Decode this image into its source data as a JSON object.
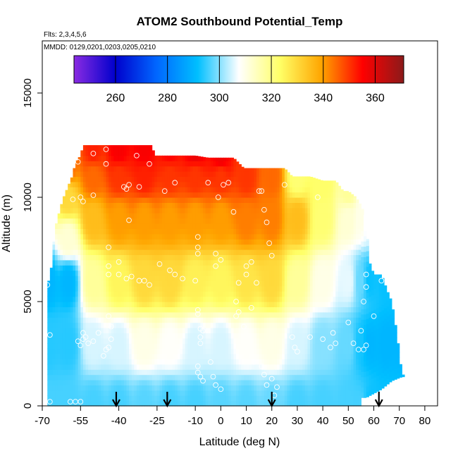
{
  "chart_data": {
    "type": "heatmap",
    "title": "ATOM2 Southbound Potential_Temp",
    "subtitle_flights": "Flts: 2,3,4,5,6",
    "subtitle_dates": "MMDD: 0129,0201,0203,0205,0210",
    "xlabel": "Latitude (deg N)",
    "ylabel": "Altitude (m)",
    "xlim": [
      -70,
      85
    ],
    "ylim": [
      0,
      17500
    ],
    "x_ticks": [
      -70,
      -55,
      -40,
      -25,
      -10,
      0,
      10,
      20,
      30,
      40,
      50,
      60,
      70,
      80
    ],
    "y_ticks": [
      0,
      5000,
      10000,
      15000
    ],
    "colorbar": {
      "min": 244,
      "max": 371,
      "ticks": [
        260,
        280,
        300,
        320,
        340,
        360
      ],
      "colors": [
        "#8a2be2",
        "#0000cc",
        "#0066ff",
        "#00bfff",
        "#ffffff",
        "#ffff66",
        "#ffa500",
        "#ff0000",
        "#8b1a1a"
      ]
    },
    "column_tops": [
      [
        -67,
        6000
      ],
      [
        -65,
        8500
      ],
      [
        -64,
        9000
      ],
      [
        -62,
        9900
      ],
      [
        -60,
        10500
      ],
      [
        -58,
        11100
      ],
      [
        -57,
        11700
      ],
      [
        -55,
        12000
      ],
      [
        -54,
        12500
      ],
      [
        -50,
        12500
      ],
      [
        -45,
        12500
      ],
      [
        -40,
        12500
      ],
      [
        -35,
        12500
      ],
      [
        -30,
        12500
      ],
      [
        -27,
        12500
      ],
      [
        -26,
        12000
      ],
      [
        -20,
        12000
      ],
      [
        -15,
        12000
      ],
      [
        -10,
        12000
      ],
      [
        -5,
        11900
      ],
      [
        0,
        11900
      ],
      [
        5,
        11900
      ],
      [
        9,
        11400
      ],
      [
        15,
        11400
      ],
      [
        20,
        11400
      ],
      [
        25,
        11400
      ],
      [
        28,
        11000
      ],
      [
        35,
        11000
      ],
      [
        40,
        10800
      ],
      [
        45,
        10800
      ],
      [
        48,
        10300
      ],
      [
        50,
        10300
      ],
      [
        53,
        10000
      ],
      [
        55,
        9600
      ],
      [
        57,
        9000
      ],
      [
        58,
        7000
      ],
      [
        60,
        6300
      ],
      [
        63,
        6300
      ],
      [
        65,
        5600
      ],
      [
        67,
        5000
      ],
      [
        69,
        3500
      ],
      [
        70,
        2500
      ],
      [
        71,
        1500
      ]
    ],
    "column_bottoms": [
      [
        55,
        400
      ],
      [
        57,
        400
      ],
      [
        60,
        600
      ],
      [
        63,
        800
      ],
      [
        65,
        1000
      ],
      [
        67,
        1200
      ],
      [
        69,
        1300
      ],
      [
        71,
        1400
      ]
    ],
    "cross_section_anchors": [
      [
        -68,
        0,
        296
      ],
      [
        -68,
        3000,
        294
      ],
      [
        -68,
        6000,
        290
      ],
      [
        -60,
        0,
        296
      ],
      [
        -60,
        3000,
        294
      ],
      [
        -60,
        6000,
        290
      ],
      [
        -60,
        8000,
        312
      ],
      [
        -60,
        10000,
        330
      ],
      [
        -60,
        11500,
        345
      ],
      [
        -50,
        0,
        296
      ],
      [
        -50,
        3000,
        305
      ],
      [
        -50,
        6000,
        318
      ],
      [
        -50,
        9000,
        335
      ],
      [
        -50,
        11000,
        345
      ],
      [
        -50,
        12300,
        352
      ],
      [
        -40,
        0,
        296
      ],
      [
        -40,
        3000,
        305
      ],
      [
        -40,
        6000,
        325
      ],
      [
        -40,
        9000,
        340
      ],
      [
        -40,
        11000,
        350
      ],
      [
        -40,
        12300,
        356
      ],
      [
        -30,
        0,
        297
      ],
      [
        -30,
        3000,
        310
      ],
      [
        -30,
        6000,
        330
      ],
      [
        -30,
        9000,
        340
      ],
      [
        -30,
        11000,
        352
      ],
      [
        -30,
        12300,
        356
      ],
      [
        -20,
        0,
        296
      ],
      [
        -20,
        3000,
        308
      ],
      [
        -20,
        6000,
        330
      ],
      [
        -20,
        9000,
        340
      ],
      [
        -20,
        11000,
        350
      ],
      [
        -20,
        12300,
        355
      ],
      [
        -10,
        0,
        296
      ],
      [
        -10,
        3000,
        305
      ],
      [
        -10,
        6000,
        326
      ],
      [
        -10,
        9000,
        340
      ],
      [
        -10,
        11000,
        350
      ],
      [
        -10,
        12300,
        358
      ],
      [
        0,
        0,
        297
      ],
      [
        0,
        3000,
        305
      ],
      [
        0,
        6000,
        325
      ],
      [
        0,
        9000,
        340
      ],
      [
        0,
        11000,
        350
      ],
      [
        0,
        12000,
        357
      ],
      [
        10,
        0,
        297
      ],
      [
        10,
        3000,
        308
      ],
      [
        10,
        6000,
        328
      ],
      [
        10,
        9000,
        343
      ],
      [
        10,
        11000,
        350
      ],
      [
        20,
        0,
        298
      ],
      [
        20,
        3000,
        310
      ],
      [
        20,
        6000,
        330
      ],
      [
        20,
        9000,
        343
      ],
      [
        20,
        11000,
        345
      ],
      [
        30,
        0,
        296
      ],
      [
        30,
        3000,
        305
      ],
      [
        30,
        6000,
        318
      ],
      [
        30,
        9000,
        335
      ],
      [
        30,
        11000,
        322
      ],
      [
        40,
        0,
        296
      ],
      [
        40,
        3000,
        300
      ],
      [
        40,
        6000,
        310
      ],
      [
        40,
        9000,
        322
      ],
      [
        40,
        10700,
        323
      ],
      [
        50,
        0,
        296
      ],
      [
        50,
        3000,
        298
      ],
      [
        50,
        6000,
        306
      ],
      [
        50,
        9000,
        312
      ],
      [
        50,
        10300,
        318
      ],
      [
        55,
        0,
        296
      ],
      [
        55,
        3000,
        293
      ],
      [
        55,
        6000,
        298
      ],
      [
        55,
        9000,
        310
      ],
      [
        58,
        0,
        292
      ],
      [
        58,
        3000,
        290
      ],
      [
        58,
        6000,
        292
      ],
      [
        58,
        9000,
        305
      ],
      [
        65,
        0,
        292
      ],
      [
        65,
        3000,
        290
      ],
      [
        65,
        6000,
        292
      ],
      [
        71,
        0,
        292
      ],
      [
        71,
        3000,
        290
      ],
      [
        71,
        6000,
        292
      ]
    ],
    "observation_points": [
      [
        -67,
        200
      ],
      [
        -67,
        3400
      ],
      [
        -68,
        5800
      ],
      [
        -59,
        200
      ],
      [
        -57,
        200
      ],
      [
        -55,
        200
      ],
      [
        -54,
        3500
      ],
      [
        -56,
        3100
      ],
      [
        -55,
        2900
      ],
      [
        -54,
        3200
      ],
      [
        -53,
        3300
      ],
      [
        -52,
        3000
      ],
      [
        -50,
        3100
      ],
      [
        -48,
        3500
      ],
      [
        -44,
        4300
      ],
      [
        -43,
        3800
      ],
      [
        -43,
        3200
      ],
      [
        -44,
        2800
      ],
      [
        -45,
        2700
      ],
      [
        -46,
        2400
      ],
      [
        -44,
        6300
      ],
      [
        -44,
        6700
      ],
      [
        -44,
        7600
      ],
      [
        -40,
        6300
      ],
      [
        -40,
        6900
      ],
      [
        -37,
        6100
      ],
      [
        -35,
        6200
      ],
      [
        -32,
        6000
      ],
      [
        -30,
        6000
      ],
      [
        -28,
        5800
      ],
      [
        -24,
        6800
      ],
      [
        -20,
        6500
      ],
      [
        -18,
        6300
      ],
      [
        -15,
        6100
      ],
      [
        -10,
        6000
      ],
      [
        -9,
        4600
      ],
      [
        -9,
        4400
      ],
      [
        -8,
        3700
      ],
      [
        -7,
        3600
      ],
      [
        -8,
        3300
      ],
      [
        -8,
        3000
      ],
      [
        -9,
        1900
      ],
      [
        -9,
        1600
      ],
      [
        -8,
        1400
      ],
      [
        -7,
        1200
      ],
      [
        -4,
        2100
      ],
      [
        -3,
        1400
      ],
      [
        -2,
        1000
      ],
      [
        0,
        800
      ],
      [
        -2,
        6700
      ],
      [
        0,
        7000
      ],
      [
        -2,
        7300
      ],
      [
        -9,
        7300
      ],
      [
        -9,
        7600
      ],
      [
        -9,
        8100
      ],
      [
        -5,
        10700
      ],
      [
        -1,
        10000
      ],
      [
        1,
        10600
      ],
      [
        3,
        10700
      ],
      [
        5,
        9300
      ],
      [
        7,
        5900
      ],
      [
        6,
        5000
      ],
      [
        6,
        4300
      ],
      [
        7,
        4500
      ],
      [
        9,
        3800
      ],
      [
        10,
        6300
      ],
      [
        10,
        6700
      ],
      [
        12,
        6900
      ],
      [
        14,
        5900
      ],
      [
        12,
        4700
      ],
      [
        13,
        2100
      ],
      [
        16,
        1900
      ],
      [
        17,
        1500
      ],
      [
        18,
        1000
      ],
      [
        20,
        1300
      ],
      [
        21,
        500
      ],
      [
        22,
        900
      ],
      [
        15,
        10300
      ],
      [
        16,
        10300
      ],
      [
        17,
        9400
      ],
      [
        18,
        8800
      ],
      [
        19,
        7800
      ],
      [
        20,
        7200
      ],
      [
        25,
        10600
      ],
      [
        28,
        3300
      ],
      [
        29,
        2800
      ],
      [
        30,
        2600
      ],
      [
        35,
        3300
      ],
      [
        38,
        10000
      ],
      [
        40,
        3200
      ],
      [
        43,
        2800
      ],
      [
        44,
        3500
      ],
      [
        45,
        3000
      ],
      [
        50,
        4000
      ],
      [
        52,
        3000
      ],
      [
        54,
        2700
      ],
      [
        55,
        3600
      ],
      [
        56,
        2700
      ],
      [
        57,
        2900
      ],
      [
        56,
        5000
      ],
      [
        57,
        5700
      ],
      [
        57,
        6300
      ],
      [
        60,
        4300
      ],
      [
        63,
        6000
      ],
      [
        70,
        600
      ],
      [
        -38,
        10500
      ],
      [
        -36,
        10600
      ],
      [
        -33,
        12000
      ],
      [
        -28,
        11600
      ],
      [
        -18,
        10700
      ],
      [
        -22,
        10300
      ],
      [
        -45,
        11600
      ],
      [
        -45,
        12300
      ],
      [
        -32,
        10500
      ],
      [
        -50,
        10100
      ],
      [
        -50,
        12100
      ],
      [
        -54,
        9800
      ],
      [
        -55,
        10000
      ],
      [
        -58,
        9900
      ],
      [
        -56,
        11700
      ],
      [
        -36,
        8900
      ],
      [
        -37,
        10400
      ]
    ],
    "flight_arrows_lat": [
      -41,
      -21,
      20,
      62
    ]
  }
}
